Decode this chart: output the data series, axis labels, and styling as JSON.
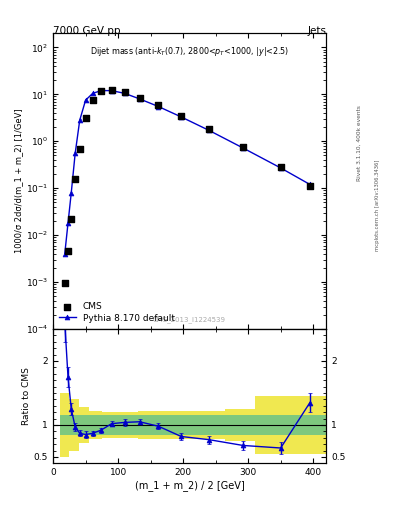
{
  "title_top": "7000 GeV pp",
  "title_right": "Jets",
  "annotation": "Dijet mass (anti-k$_T$(0.7), 2800<p$_T$<1000, |y|<2.5)",
  "watermark": "CMS_2013_I1224539",
  "ylabel_main": "1000/σ 2dσ/d(m_1 + m_2) [1/GeV]",
  "xlabel": "(m_1 + m_2) / 2 [GeV]",
  "ylabel_ratio": "Ratio to CMS",
  "right_label_top": "Rivet 3.1.10, 400k events",
  "right_label_bot": "mcplots.cern.ch [arXiv:1306.3436]",
  "cms_x": [
    18,
    23,
    28,
    34,
    41,
    50,
    61,
    74,
    90,
    110,
    133,
    162,
    197,
    240,
    292,
    350,
    395
  ],
  "cms_y": [
    0.00096,
    0.0045,
    0.022,
    0.16,
    0.7,
    3.2,
    7.5,
    11.5,
    12.5,
    11.0,
    8.5,
    5.8,
    3.5,
    1.8,
    0.75,
    0.28,
    0.11
  ],
  "pythia_x": [
    18,
    23,
    28,
    34,
    41,
    50,
    61,
    74,
    90,
    110,
    133,
    162,
    197,
    240,
    292,
    350,
    395
  ],
  "pythia_y": [
    0.004,
    0.018,
    0.08,
    0.55,
    2.8,
    7.5,
    10.5,
    12.0,
    12.0,
    10.5,
    8.0,
    5.5,
    3.3,
    1.7,
    0.72,
    0.27,
    0.12
  ],
  "ratio_x": [
    18,
    23,
    28,
    34,
    41,
    50,
    61,
    74,
    90,
    110,
    133,
    162,
    197,
    240,
    292,
    350,
    395
  ],
  "ratio_y": [
    2.6,
    1.75,
    1.25,
    0.97,
    0.87,
    0.85,
    0.87,
    0.92,
    1.02,
    1.04,
    1.05,
    0.98,
    0.82,
    0.77,
    0.68,
    0.64,
    1.35
  ],
  "ratio_yerr": [
    0.3,
    0.15,
    0.1,
    0.06,
    0.05,
    0.05,
    0.04,
    0.04,
    0.04,
    0.05,
    0.04,
    0.05,
    0.05,
    0.06,
    0.07,
    0.09,
    0.15
  ],
  "band_edges": [
    10,
    25,
    40,
    55,
    75,
    100,
    130,
    165,
    210,
    265,
    310,
    370,
    430
  ],
  "green_lo": [
    0.85,
    0.85,
    0.85,
    0.85,
    0.85,
    0.85,
    0.85,
    0.85,
    0.85,
    0.85,
    0.85,
    0.85
  ],
  "green_hi": [
    1.15,
    1.15,
    1.15,
    1.15,
    1.15,
    1.15,
    1.15,
    1.15,
    1.15,
    1.15,
    1.15,
    1.15
  ],
  "yellow_lo": [
    0.5,
    0.6,
    0.72,
    0.78,
    0.8,
    0.8,
    0.78,
    0.78,
    0.78,
    0.75,
    0.55,
    0.55
  ],
  "yellow_hi": [
    1.5,
    1.4,
    1.28,
    1.22,
    1.2,
    1.2,
    1.22,
    1.22,
    1.22,
    1.25,
    1.45,
    1.45
  ],
  "green_color": "#7ec87e",
  "yellow_color": "#f0e850",
  "line_color": "#0000cc",
  "cms_color": "black",
  "xlim": [
    0,
    420
  ],
  "ylim_main": [
    0.0001,
    200.0
  ],
  "ylim_ratio": [
    0.4,
    2.5
  ],
  "ratio_yticks": [
    0.5,
    1.0,
    2.0
  ],
  "ratio_yticklabels": [
    "0.5",
    "1",
    "2"
  ]
}
